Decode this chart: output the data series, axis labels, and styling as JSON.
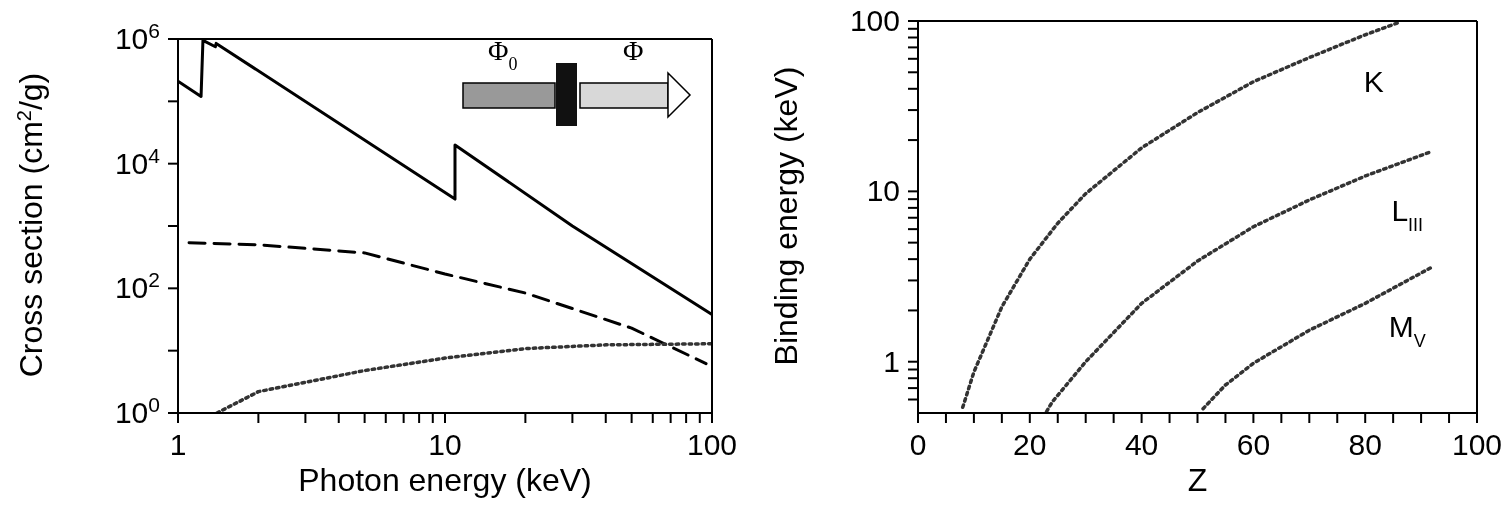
{
  "chart_data": [
    {
      "type": "line",
      "xlabel": "Photon energy (keV)",
      "ylabel": "Cross section  (cm$^{2}$/g)",
      "log": "xy",
      "xlim": [
        1,
        100
      ],
      "ylim": [
        1,
        1000000
      ],
      "xticks": [
        1,
        {
          "value": 2,
          "label": null
        },
        {
          "value": 3,
          "label": null
        },
        {
          "value": 4,
          "label": null
        },
        {
          "value": 5,
          "label": null
        },
        {
          "value": 6,
          "label": null
        },
        {
          "value": 7,
          "label": null
        },
        {
          "value": 8,
          "label": null
        },
        {
          "value": 9,
          "label": null
        },
        10,
        {
          "value": 20,
          "label": null
        },
        {
          "value": 30,
          "label": null
        },
        {
          "value": 40,
          "label": null
        },
        {
          "value": 50,
          "label": null
        },
        {
          "value": 60,
          "label": null
        },
        {
          "value": 70,
          "label": null
        },
        {
          "value": 80,
          "label": null
        },
        {
          "value": 90,
          "label": null
        },
        100
      ],
      "yticks": [
        {
          "value": 1,
          "label": "10$^{0}$"
        },
        {
          "value": 10,
          "label": null
        },
        {
          "value": 100,
          "label": "10$^{2}$"
        },
        {
          "value": 1000,
          "label": null
        },
        {
          "value": 10000,
          "label": "10$^{4}$"
        },
        {
          "value": 100000,
          "label": null
        },
        {
          "value": 1000000,
          "label": "10$^{6}$"
        }
      ],
      "grid": false,
      "legend": false,
      "marker": "none",
      "annotations": [
        "Φ$_{0}$",
        "Φ"
      ],
      "series": [
        {
          "color": "#000000",
          "line_style": "solid",
          "x": [
            1,
            1.22,
            1.24,
            1.38,
            1.39,
            10.9,
            10.9,
            30,
            100
          ],
          "values": [
            210000,
            120000,
            950000,
            750000,
            850000,
            2700,
            20000,
            1000,
            38
          ]
        },
        {
          "color": "#000000",
          "line_style": "dashed",
          "x": [
            1.1,
            2,
            5,
            10,
            20,
            50,
            95
          ],
          "values": [
            540,
            500,
            370,
            170,
            84,
            23,
            6.2
          ]
        },
        {
          "color": "#333333",
          "line_style": "dotted",
          "x": [
            1.4,
            2,
            5,
            10,
            20,
            40,
            100
          ],
          "values": [
            1,
            2.2,
            4.8,
            7.6,
            10.8,
            12.4,
            12.9
          ]
        }
      ]
    },
    {
      "type": "line",
      "xlabel": "Z",
      "ylabel": "Binding energy (keV)",
      "log": "y",
      "xlim": [
        0,
        100
      ],
      "ylim": [
        0.5,
        100
      ],
      "xticks": [
        0,
        {
          "value": 5,
          "label": null
        },
        {
          "value": 10,
          "label": null
        },
        {
          "value": 15,
          "label": null
        },
        20,
        {
          "value": 25,
          "label": null
        },
        {
          "value": 30,
          "label": null
        },
        {
          "value": 35,
          "label": null
        },
        40,
        {
          "value": 45,
          "label": null
        },
        {
          "value": 50,
          "label": null
        },
        {
          "value": 55,
          "label": null
        },
        60,
        {
          "value": 65,
          "label": null
        },
        {
          "value": 70,
          "label": null
        },
        {
          "value": 75,
          "label": null
        },
        80,
        {
          "value": 85,
          "label": null
        },
        {
          "value": 90,
          "label": null
        },
        {
          "value": 95,
          "label": null
        },
        100
      ],
      "yticks": [
        {
          "value": 0.6,
          "label": null
        },
        {
          "value": 0.7,
          "label": null
        },
        {
          "value": 0.8,
          "label": null
        },
        {
          "value": 0.9,
          "label": null
        },
        1,
        {
          "value": 2,
          "label": null
        },
        {
          "value": 3,
          "label": null
        },
        {
          "value": 4,
          "label": null
        },
        {
          "value": 5,
          "label": null
        },
        {
          "value": 6,
          "label": null
        },
        {
          "value": 7,
          "label": null
        },
        {
          "value": 8,
          "label": null
        },
        {
          "value": 9,
          "label": null
        },
        10,
        {
          "value": 20,
          "label": null
        },
        {
          "value": 30,
          "label": null
        },
        {
          "value": 40,
          "label": null
        },
        {
          "value": 50,
          "label": null
        },
        {
          "value": 60,
          "label": null
        },
        {
          "value": 70,
          "label": null
        },
        {
          "value": 80,
          "label": null
        },
        {
          "value": 90,
          "label": null
        },
        100
      ],
      "grid": false,
      "legend": false,
      "marker": "none",
      "series": [
        {
          "name": "K",
          "color": "#333333",
          "line_style": "dotted",
          "x": [
            8,
            10,
            15,
            20,
            25,
            30,
            40,
            50,
            60,
            70,
            80,
            86
          ],
          "values": [
            0.54,
            0.87,
            2.1,
            4.0,
            6.5,
            9.7,
            18,
            29,
            44,
            61,
            83,
            98
          ]
        },
        {
          "name": "L$_{III}$",
          "color": "#333333",
          "line_style": "dotted",
          "x": [
            23,
            24,
            30,
            40,
            50,
            60,
            70,
            80,
            92
          ],
          "values": [
            0.51,
            0.58,
            1.0,
            2.2,
            3.9,
            6.2,
            8.9,
            12.3,
            17.2
          ]
        },
        {
          "name": "M$_{V}$",
          "color": "#333333",
          "line_style": "dotted",
          "x": [
            51,
            55,
            60,
            70,
            80,
            92
          ],
          "values": [
            0.53,
            0.73,
            0.98,
            1.53,
            2.2,
            3.6
          ]
        }
      ]
    }
  ]
}
